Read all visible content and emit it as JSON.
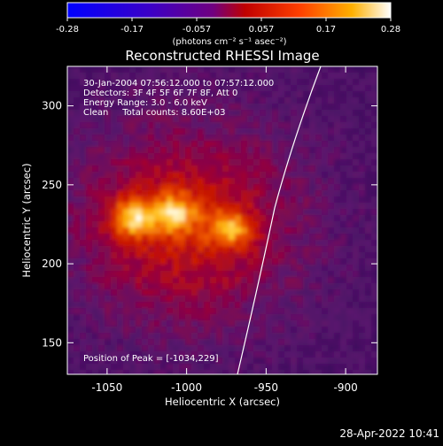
{
  "colorbar": {
    "ticks": [
      "-0.28",
      "-0.17",
      "-0.057",
      "0.057",
      "0.17",
      "0.28"
    ],
    "units_label": "(photons cm⁻² s⁻¹ asec⁻²)",
    "colors": [
      "#0000ff",
      "#4a00b0",
      "#7a10a0",
      "#ff0000",
      "#ff8c00",
      "#ffffff"
    ]
  },
  "chart_data": {
    "type": "heatmap",
    "title": "Reconstructed RHESSI Image",
    "xlabel": "Heliocentric X (arcsec)",
    "ylabel": "Heliocentric Y (arcsec)",
    "xlim": [
      -1075,
      -880
    ],
    "ylim": [
      130,
      325
    ],
    "x_ticks": [
      "-1050",
      "-1000",
      "-950",
      "-900"
    ],
    "y_ticks": [
      "150",
      "200",
      "250",
      "300"
    ],
    "x_tick_values": [
      -1050,
      -1000,
      -950,
      -900
    ],
    "y_tick_values": [
      150,
      200,
      250,
      300
    ],
    "peaks": [
      {
        "x": -1034,
        "y": 229,
        "value": 0.28
      },
      {
        "x": -1008,
        "y": 232,
        "value": 0.24
      },
      {
        "x": -972,
        "y": 222,
        "value": 0.22
      }
    ],
    "info_lines": [
      "30-Jan-2004 07:56:12.000 to 07:57:12.000",
      "Detectors: 3F 4F 5F 6F 7F 8F, Att 0",
      "Energy Range: 3.0 - 6.0 keV",
      "Clean     Total counts: 8.60E+03"
    ],
    "peak_label": "Position of Peak = [-1034,229]"
  },
  "timestamp": "28-Apr-2022 10:41"
}
